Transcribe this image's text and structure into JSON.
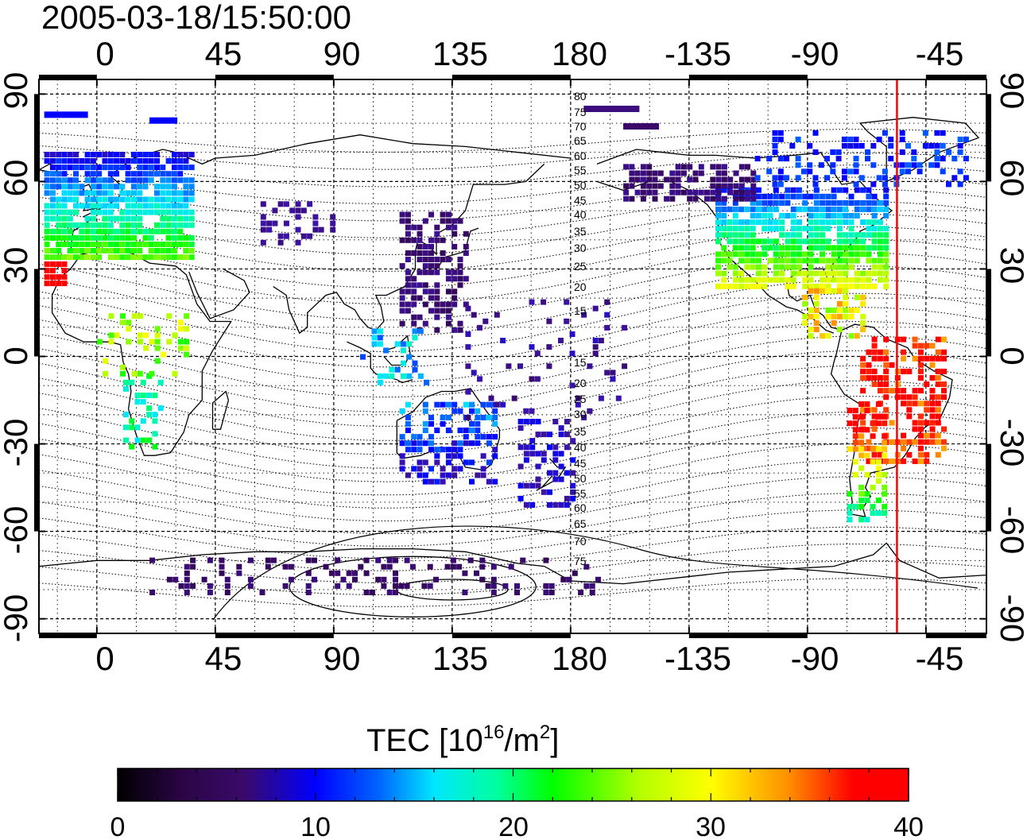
{
  "title": "2005-03-18/15:50:00",
  "map": {
    "x_tick_labels": [
      "0",
      "45",
      "90",
      "135",
      "180",
      "-135",
      "-90",
      "-45"
    ],
    "y_tick_labels_left": [
      "90",
      "60",
      "30",
      "0",
      "-30",
      "-60",
      "-90"
    ],
    "y_tick_labels_right": [
      "90",
      "60",
      "30",
      "0",
      "-30",
      "-60",
      "-90"
    ],
    "lon_ticks": [
      0,
      45,
      90,
      135,
      180,
      225,
      270,
      315
    ],
    "lat_ticks": [
      90,
      60,
      30,
      0,
      -30,
      -60,
      -90
    ],
    "lon_range": [
      -22,
      338
    ],
    "lat_range": [
      -95,
      95
    ],
    "grid": "dotted",
    "terminator_lon": 304
  },
  "magnetic_latitude_labels": [
    "80",
    "75",
    "70",
    "65",
    "60",
    "55",
    "50",
    "45",
    "40",
    "35",
    "30",
    "25",
    "20",
    "15",
    "15",
    "20",
    "25",
    "30",
    "35",
    "40",
    "45",
    "50",
    "55",
    "60",
    "65",
    "70",
    "75"
  ],
  "colorbar": {
    "label_main": "TEC  [10",
    "label_exp": "16",
    "label_unit": "/m",
    "label_exp2": "2",
    "label_close": "]",
    "ticks": [
      "0",
      "10",
      "20",
      "30",
      "40"
    ],
    "min": 0,
    "max": 40
  },
  "colors": {
    "terminator": "#ff0000",
    "colormap": [
      "#000000",
      "#3a0a5a",
      "#4b0f9a",
      "#0000ff",
      "#0078ff",
      "#00ffff",
      "#00ff80",
      "#00ff00",
      "#b4ff00",
      "#ffff00",
      "#ff9600",
      "#ff0000"
    ]
  }
}
